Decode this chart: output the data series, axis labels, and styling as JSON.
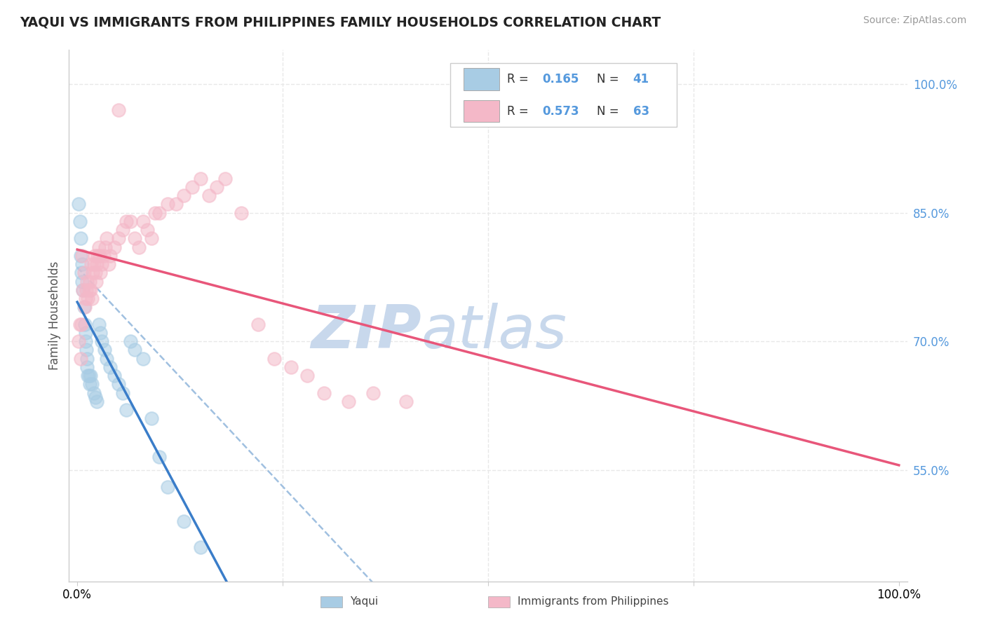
{
  "title": "YAQUI VS IMMIGRANTS FROM PHILIPPINES FAMILY HOUSEHOLDS CORRELATION CHART",
  "source": "Source: ZipAtlas.com",
  "ylabel": "Family Households",
  "ytick_vals": [
    0.55,
    0.7,
    0.85,
    1.0
  ],
  "ytick_labels": [
    "55.0%",
    "70.0%",
    "85.0%",
    "100.0%"
  ],
  "xtick_vals": [
    0.0,
    1.0
  ],
  "xtick_labels": [
    "0.0%",
    "100.0%"
  ],
  "xtick_mid_vals": [
    0.25,
    0.5,
    0.75
  ],
  "ymin": 0.42,
  "ymax": 1.04,
  "xmin": -0.01,
  "xmax": 1.01,
  "legend_r1": "R = 0.165",
  "legend_n1": "N = 41",
  "legend_r2": "R = 0.573",
  "legend_n2": "N = 63",
  "color_blue": "#a8cce4",
  "color_pink": "#f4b8c8",
  "color_blue_line": "#3a7dc9",
  "color_pink_line": "#e8567a",
  "color_dashed": "#a0c0e0",
  "watermark_zip_color": "#c8d8ec",
  "watermark_atlas_color": "#c8d8ec",
  "background_color": "#ffffff",
  "grid_color": "#e8e8e8",
  "grid_style": "--",
  "tick_color": "#5599dd",
  "legend_box_color": "#f5f5f5"
}
